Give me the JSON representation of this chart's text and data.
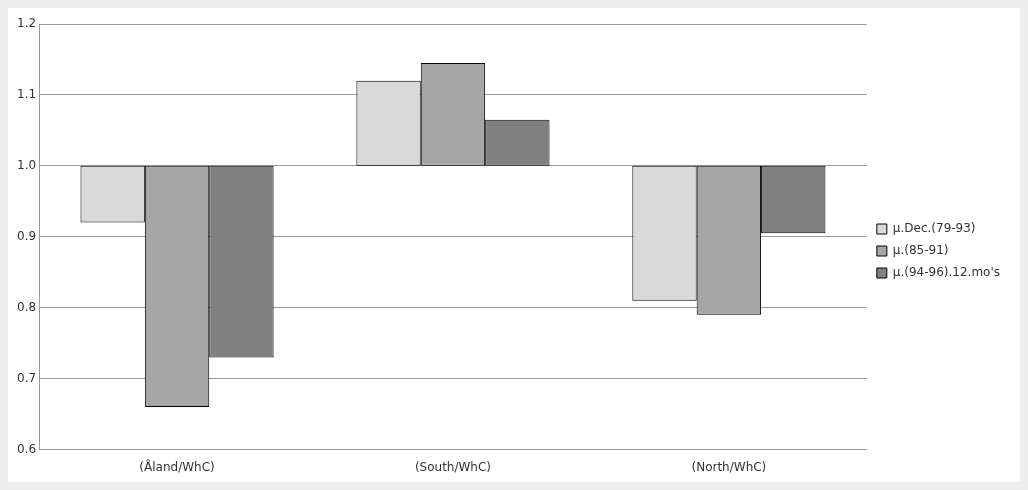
{
  "chart_data": {
    "type": "bar",
    "categories": [
      "(Åland/WhC)",
      "(South/WhC)",
      "(North/WhC)"
    ],
    "series": [
      {
        "name": "μ.Dec.(79-93)",
        "color": "#d9d9d9",
        "base": [
          1,
          1,
          1
        ],
        "values": [
          -0.08,
          0.12,
          -0.19
        ]
      },
      {
        "name": "μ.(85-91)",
        "color": "#a6a6a6",
        "base": [
          1,
          1,
          1
        ],
        "values": [
          -0.34,
          0.145,
          -0.21
        ]
      },
      {
        "name": "μ.(94-96).12.mo's",
        "color": "#808080",
        "base": [
          1,
          1,
          1
        ],
        "values": [
          -0.27,
          0.065,
          -0.095
        ]
      }
    ],
    "ylim": [
      0.6,
      1.2
    ],
    "yticks": [
      0.6,
      0.7,
      0.8,
      0.9,
      {
        "value": 1,
        "label": "1.0"
      },
      1.1,
      1.2
    ],
    "grid": "y",
    "legend": "right"
  }
}
